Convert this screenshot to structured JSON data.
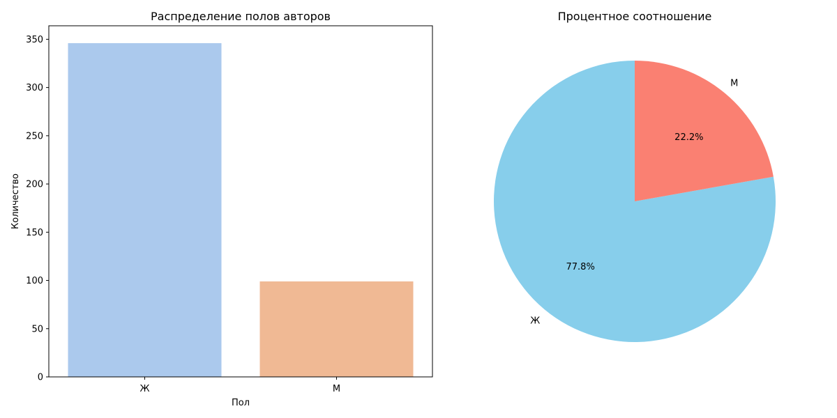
{
  "chart_data": [
    {
      "type": "bar",
      "title": "Распределение полов авторов",
      "xlabel": "Пол",
      "ylabel": "Количество",
      "categories": [
        "Ж",
        "М"
      ],
      "values": [
        346,
        99
      ],
      "colors": [
        "#abc9ed",
        "#f0b994"
      ],
      "ylim": [
        0,
        364
      ],
      "yticks": [
        0,
        50,
        100,
        150,
        200,
        250,
        300,
        350
      ],
      "grid": false
    },
    {
      "type": "pie",
      "title": "Процентное соотношение",
      "slices": [
        {
          "label": "Ж",
          "value": 77.8,
          "pct_label": "77.8%",
          "color": "#87ceeb"
        },
        {
          "label": "М",
          "value": 22.2,
          "pct_label": "22.2%",
          "color": "#fa8072"
        }
      ],
      "start_angle": 90,
      "direction": "counterclockwise"
    }
  ]
}
